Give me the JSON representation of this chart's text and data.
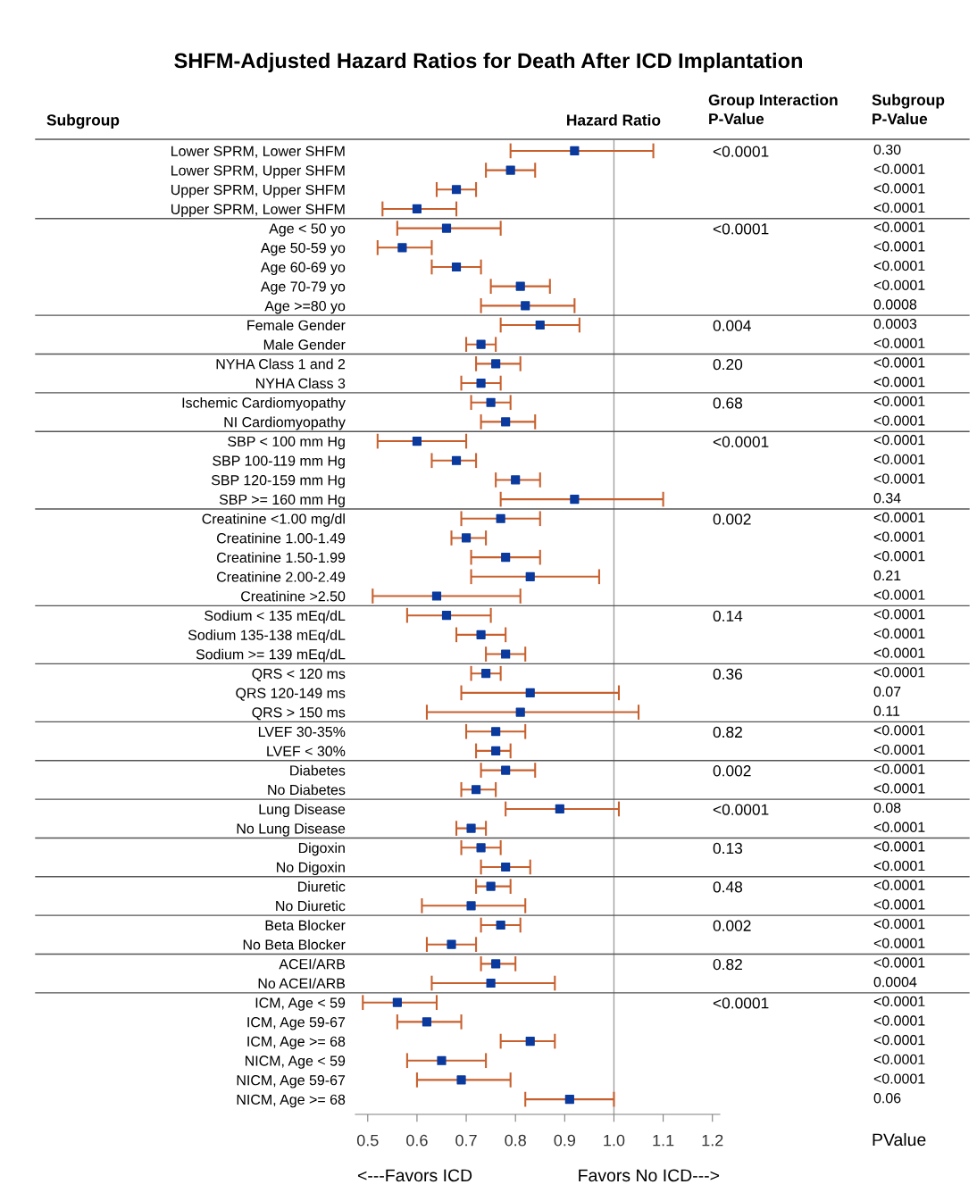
{
  "chart_data": {
    "type": "scatter",
    "title": "SHFM-Adjusted Hazard Ratios for Death After ICD Implantation",
    "ylabel": "Subgroup",
    "categories": [
      "Lower SPRM, Lower SHFM",
      "Lower SPRM, Upper SHFM",
      "Upper SPRM, Upper SHFM",
      "Upper SPRM, Lower SHFM",
      "Age < 50 yo",
      "Age 50-59 yo",
      "Age 60-69 yo",
      "Age 70-79 yo",
      "Age >=80 yo",
      "Female Gender",
      "Male Gender",
      "NYHA Class 1 and 2",
      "NYHA Class 3",
      "Ischemic Cardiomyopathy",
      "NI Cardiomyopathy",
      "SBP < 100 mm Hg",
      "SBP 100-119 mm Hg",
      "SBP 120-159 mm Hg",
      "SBP >= 160 mm Hg",
      "Creatinine <1.00 mg/dl",
      "Creatinine 1.00-1.49",
      "Creatinine 1.50-1.99",
      "Creatinine 2.00-2.49",
      "Creatinine >2.50",
      "Sodium < 135 mEq/dL",
      "Sodium 135-138 mEq/dL",
      "Sodium >= 139 mEq/dL",
      "QRS < 120 ms",
      "QRS 120-149 ms",
      "QRS > 150 ms",
      "LVEF 30-35%",
      "LVEF < 30%",
      "Diabetes",
      "No Diabetes",
      "Lung Disease",
      "No Lung Disease",
      "Digoxin",
      "No Digoxin",
      "Diuretic",
      "No Diuretic",
      "Beta Blocker",
      "No Beta Blocker",
      "ACEI/ARB",
      "No ACEI/ARB",
      "ICM, Age < 59",
      "ICM, Age 59-67",
      "ICM, Age >= 68",
      "NICM, Age < 59",
      "NICM, Age 59-67",
      "NICM, Age >= 68"
    ],
    "y2_categories": [
      "<0.0001",
      null,
      null,
      null,
      "<0.0001",
      null,
      null,
      null,
      null,
      "0.004",
      null,
      "0.20",
      null,
      "0.68",
      null,
      "<0.0001",
      null,
      null,
      null,
      "0.002",
      null,
      null,
      null,
      null,
      "0.14",
      null,
      null,
      "0.36",
      null,
      null,
      "0.82",
      null,
      "0.002",
      null,
      "<0.0001",
      null,
      "0.13",
      null,
      "0.48",
      null,
      "0.002",
      null,
      "0.82",
      null,
      "<0.0001",
      null,
      null,
      null,
      null,
      null
    ],
    "series": [
      {
        "color": "#0a3a9e",
        "marker": "square",
        "values": [
          0.92,
          0.79,
          0.68,
          0.6,
          0.66,
          0.57,
          0.68,
          0.81,
          0.82,
          0.85,
          0.73,
          0.76,
          0.73,
          0.75,
          0.78,
          0.6,
          0.68,
          0.8,
          0.92,
          0.77,
          0.7,
          0.78,
          0.83,
          0.64,
          0.66,
          0.73,
          0.78,
          0.74,
          0.83,
          0.81,
          0.76,
          0.76,
          0.78,
          0.72,
          0.89,
          0.71,
          0.73,
          0.78,
          0.75,
          0.71,
          0.77,
          0.67,
          0.76,
          0.75,
          0.56,
          0.62,
          0.83,
          0.65,
          0.69,
          0.91
        ],
        "errors": [
          [
            0.79,
            1.08
          ],
          [
            0.74,
            0.84
          ],
          [
            0.64,
            0.72
          ],
          [
            0.53,
            0.68
          ],
          [
            0.56,
            0.77
          ],
          [
            0.52,
            0.63
          ],
          [
            0.63,
            0.73
          ],
          [
            0.75,
            0.87
          ],
          [
            0.73,
            0.92
          ],
          [
            0.77,
            0.93
          ],
          [
            0.7,
            0.76
          ],
          [
            0.72,
            0.81
          ],
          [
            0.69,
            0.77
          ],
          [
            0.71,
            0.79
          ],
          [
            0.73,
            0.84
          ],
          [
            0.52,
            0.7
          ],
          [
            0.63,
            0.72
          ],
          [
            0.76,
            0.85
          ],
          [
            0.77,
            1.1
          ],
          [
            0.69,
            0.85
          ],
          [
            0.67,
            0.74
          ],
          [
            0.71,
            0.85
          ],
          [
            0.71,
            0.97
          ],
          [
            0.51,
            0.81
          ],
          [
            0.58,
            0.75
          ],
          [
            0.68,
            0.78
          ],
          [
            0.74,
            0.82
          ],
          [
            0.71,
            0.77
          ],
          [
            0.69,
            1.01
          ],
          [
            0.62,
            1.05
          ],
          [
            0.7,
            0.82
          ],
          [
            0.72,
            0.79
          ],
          [
            0.73,
            0.84
          ],
          [
            0.69,
            0.76
          ],
          [
            0.78,
            1.01
          ],
          [
            0.68,
            0.74
          ],
          [
            0.69,
            0.77
          ],
          [
            0.73,
            0.83
          ],
          [
            0.72,
            0.79
          ],
          [
            0.61,
            0.82
          ],
          [
            0.73,
            0.81
          ],
          [
            0.62,
            0.72
          ],
          [
            0.73,
            0.8
          ],
          [
            0.63,
            0.88
          ],
          [
            0.49,
            0.64
          ],
          [
            0.56,
            0.69
          ],
          [
            0.77,
            0.88
          ],
          [
            0.58,
            0.74
          ],
          [
            0.6,
            0.79
          ],
          [
            0.82,
            1.0
          ]
        ]
      }
    ],
    "xlim": [
      0.475,
      1.215
    ],
    "xticks": [
      {
        "value": 0.5,
        "label": "0.5"
      },
      {
        "value": 0.6,
        "label": "0.6"
      },
      {
        "value": 0.7,
        "label": "0.7"
      },
      {
        "value": 0.8,
        "label": "0.8"
      },
      {
        "value": 0.9,
        "label": "0.9"
      },
      {
        "value": 1.0,
        "label": "1.0"
      },
      {
        "value": 1.1,
        "label": "1.1"
      },
      {
        "value": 1.2,
        "label": "1.2"
      }
    ],
    "ref_lines": [
      {
        "axis": "x",
        "value": 1.0,
        "color": "#a0a0a0"
      }
    ],
    "grid": false,
    "legend": false,
    "orientation": "horizontal",
    "annotations": [
      "Hazard Ratio",
      "Group Interaction\nP-Value",
      "Subgroup\nP-Value",
      "PValue",
      "<---Favors ICD",
      "Favors No ICD--->",
      "0.30",
      "<0.0001",
      "<0.0001",
      "<0.0001",
      "<0.0001",
      "<0.0001",
      "<0.0001",
      "<0.0001",
      "0.0008",
      "0.0003",
      "<0.0001",
      "<0.0001",
      "<0.0001",
      "<0.0001",
      "<0.0001",
      "<0.0001",
      "<0.0001",
      "<0.0001",
      "0.34",
      "<0.0001",
      "<0.0001",
      "<0.0001",
      "0.21",
      "<0.0001",
      "<0.0001",
      "<0.0001",
      "<0.0001",
      "<0.0001",
      "0.07",
      "0.11",
      "<0.0001",
      "<0.0001",
      "<0.0001",
      "<0.0001",
      "0.08",
      "<0.0001",
      "<0.0001",
      "<0.0001",
      "<0.0001",
      "<0.0001",
      "<0.0001",
      "<0.0001",
      "<0.0001",
      "0.0004",
      "<0.0001",
      "<0.0001",
      "<0.0001",
      "<0.0001",
      "<0.0001",
      "0.06"
    ]
  }
}
